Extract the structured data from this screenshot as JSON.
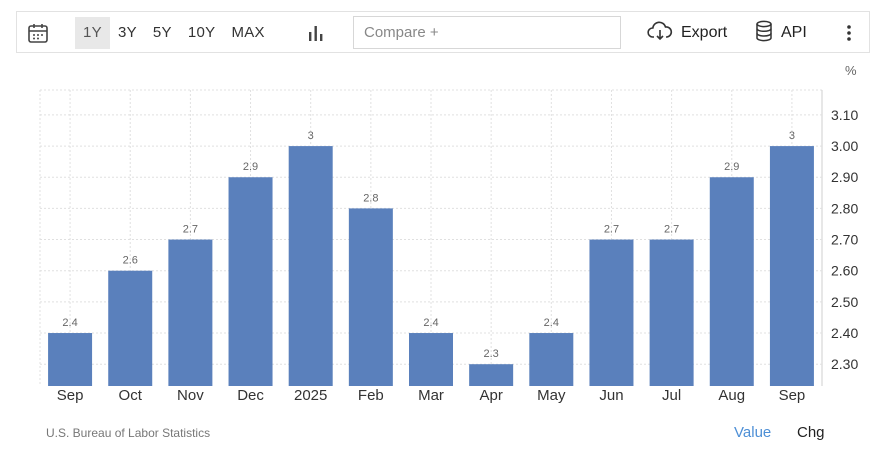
{
  "toolbar": {
    "calendar_icon": "calendar-icon",
    "ranges": [
      {
        "label": "1Y",
        "active": true
      },
      {
        "label": "3Y",
        "active": false
      },
      {
        "label": "5Y",
        "active": false
      },
      {
        "label": "10Y",
        "active": false
      },
      {
        "label": "MAX",
        "active": false
      }
    ],
    "chart_type_icon": "bar-chart-icon",
    "compare_placeholder": "Compare +",
    "export_label": "Export",
    "export_icon": "cloud-download-icon",
    "api_label": "API",
    "api_icon": "database-icon",
    "more_icon": "vertical-ellipsis-icon"
  },
  "unit_label": "%",
  "source": "U.S. Bureau of Labor Statistics",
  "view_toggle": {
    "value_label": "Value",
    "chg_label": "Chg",
    "active": "Value"
  },
  "colors": {
    "bar": "#5a80bc",
    "grid": "#e0e0e0",
    "active_link": "#4d8fd6"
  },
  "chart_data": {
    "type": "bar",
    "categories": [
      "Sep",
      "Oct",
      "Nov",
      "Dec",
      "2025",
      "Feb",
      "Mar",
      "Apr",
      "May",
      "Jun",
      "Jul",
      "Aug",
      "Sep"
    ],
    "values": [
      2.4,
      2.6,
      2.7,
      2.9,
      3,
      2.8,
      2.4,
      2.3,
      2.4,
      2.7,
      2.7,
      2.9,
      3
    ],
    "y_ticks": [
      "3.10",
      "3.00",
      "2.90",
      "2.80",
      "2.70",
      "2.60",
      "2.50",
      "2.40",
      "2.30"
    ],
    "ylim": [
      2.23,
      3.18
    ],
    "grid": true,
    "y_axis_side": "right"
  }
}
